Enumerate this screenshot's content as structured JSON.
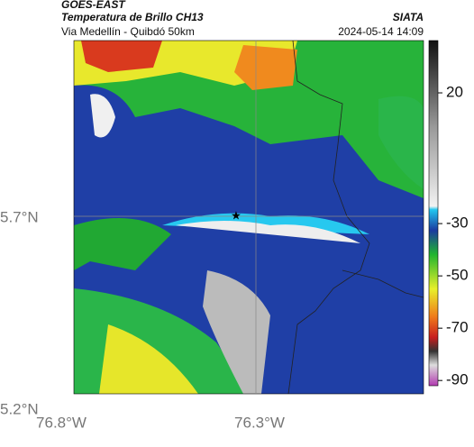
{
  "header": {
    "satellite": "GOES-EAST",
    "product": "Temperatura de Brillo CH13",
    "region": "Via Medellín - Quibdó 50km",
    "agency": "SIATA",
    "timestamp": "2024-05-14 14:09"
  },
  "map": {
    "lat_labels": [
      "5.7°N",
      "5.2°N"
    ],
    "lon_labels": [
      "76.8°W",
      "76.3°W"
    ]
  },
  "colorbar": {
    "range": [
      40,
      -92
    ],
    "ticks": [
      20,
      -30,
      -50,
      -70,
      -90
    ]
  }
}
